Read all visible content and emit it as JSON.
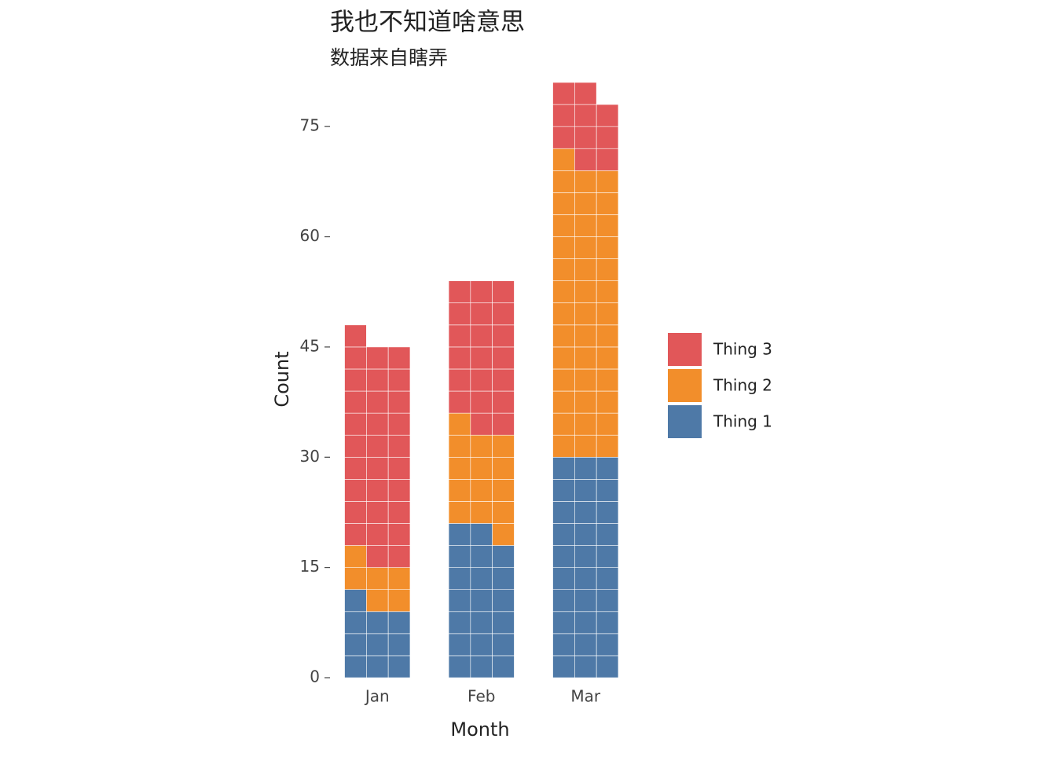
{
  "chart_data": {
    "type": "waffle_bar",
    "title": "我也不知道啥意思",
    "subtitle": "数据来自瞎弄",
    "xlabel": "Month",
    "ylabel": "Count",
    "categories": [
      "Jan",
      "Feb",
      "Mar"
    ],
    "series": [
      {
        "name": "Thing 1",
        "color": "#4e79a7",
        "values": [
          10,
          20,
          30
        ]
      },
      {
        "name": "Thing 2",
        "color": "#f28e2b",
        "values": [
          6,
          14,
          40
        ]
      },
      {
        "name": "Thing 3",
        "color": "#e15759",
        "values": [
          30,
          20,
          10
        ]
      }
    ],
    "ylim": [
      0,
      81
    ],
    "yticks": [
      0,
      15,
      30,
      45,
      60,
      75
    ],
    "legend": "right"
  }
}
